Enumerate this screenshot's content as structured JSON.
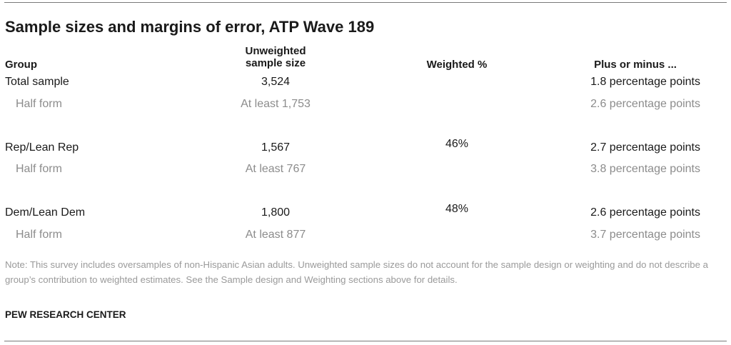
{
  "title": "Sample sizes and margins of error, ATP Wave 189",
  "headers": {
    "group": "Group",
    "unweighted_line1": "Unweighted",
    "unweighted_line2": "sample size",
    "weighted": "Weighted %",
    "moe": "Plus or minus ..."
  },
  "rows": [
    {
      "group": "Total sample",
      "size": "3,524",
      "weighted": "",
      "moe": "1.8 percentage points",
      "kind": "main"
    },
    {
      "group": "Half form",
      "size": "At least 1,753",
      "weighted": "",
      "moe": "2.6 percentage points",
      "kind": "sub"
    },
    {
      "group": "Rep/Lean Rep",
      "size": "1,567",
      "weighted": "46%",
      "moe": "2.7 percentage points",
      "kind": "main"
    },
    {
      "group": "Half form",
      "size": "At least 767",
      "weighted": "",
      "moe": "3.8 percentage points",
      "kind": "sub"
    },
    {
      "group": "Dem/Lean Dem",
      "size": "1,800",
      "weighted": "48%",
      "moe": "2.6 percentage points",
      "kind": "main"
    },
    {
      "group": "Half form",
      "size": "At least 877",
      "weighted": "",
      "moe": "3.7 percentage points",
      "kind": "sub"
    }
  ],
  "note": "Note: This survey includes oversamples of non-Hispanic Asian adults. Unweighted sample sizes do not account for the sample design or weighting and do not describe a group’s contribution to weighted estimates. See the Sample design and Weighting sections above for details.",
  "source": "PEW RESEARCH CENTER"
}
